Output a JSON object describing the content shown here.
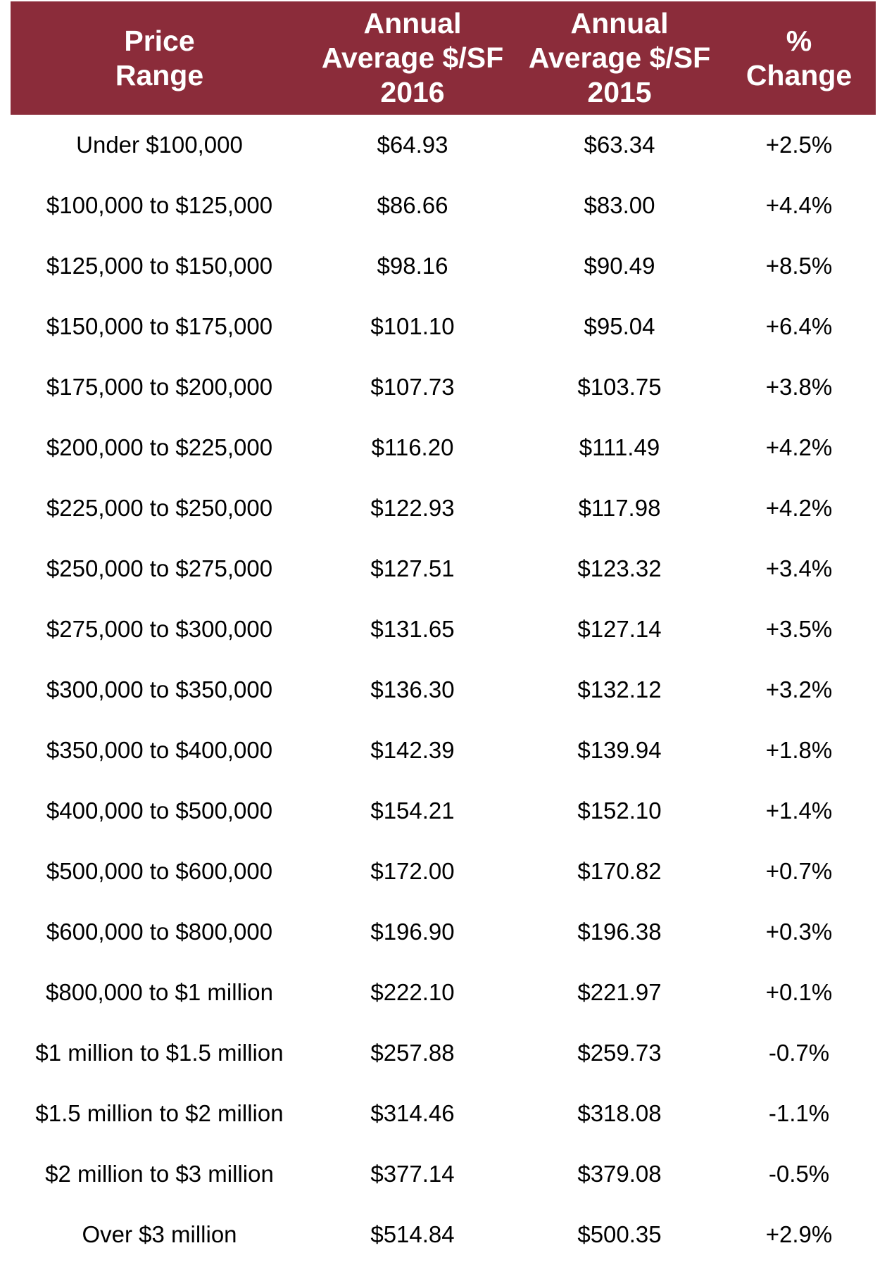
{
  "colors": {
    "header_background": "#8B2C3A",
    "header_text": "#ffffff",
    "body_text": "#000000"
  },
  "table": {
    "headers": [
      {
        "lines": [
          "Price",
          "Range"
        ]
      },
      {
        "lines": [
          "Annual",
          "Average $/SF",
          "2016"
        ]
      },
      {
        "lines": [
          "Annual",
          "Average $/SF",
          "2015"
        ]
      },
      {
        "lines": [
          "%",
          "Change"
        ]
      }
    ],
    "rows": [
      [
        "Under $100,000",
        "$64.93",
        "$63.34",
        "+2.5%"
      ],
      [
        "$100,000 to $125,000",
        "$86.66",
        "$83.00",
        "+4.4%"
      ],
      [
        "$125,000 to $150,000",
        "$98.16",
        "$90.49",
        "+8.5%"
      ],
      [
        "$150,000 to $175,000",
        "$101.10",
        "$95.04",
        "+6.4%"
      ],
      [
        "$175,000 to $200,000",
        "$107.73",
        "$103.75",
        "+3.8%"
      ],
      [
        "$200,000 to $225,000",
        "$116.20",
        "$111.49",
        "+4.2%"
      ],
      [
        "$225,000 to $250,000",
        "$122.93",
        "$117.98",
        "+4.2%"
      ],
      [
        "$250,000 to $275,000",
        "$127.51",
        "$123.32",
        "+3.4%"
      ],
      [
        "$275,000 to $300,000",
        "$131.65",
        "$127.14",
        "+3.5%"
      ],
      [
        "$300,000 to $350,000",
        "$136.30",
        "$132.12",
        "+3.2%"
      ],
      [
        "$350,000 to $400,000",
        "$142.39",
        "$139.94",
        "+1.8%"
      ],
      [
        "$400,000 to $500,000",
        "$154.21",
        "$152.10",
        "+1.4%"
      ],
      [
        "$500,000 to $600,000",
        "$172.00",
        "$170.82",
        "+0.7%"
      ],
      [
        "$600,000 to $800,000",
        "$196.90",
        "$196.38",
        "+0.3%"
      ],
      [
        "$800,000 to $1 million",
        "$222.10",
        "$221.97",
        "+0.1%"
      ],
      [
        "$1 million to $1.5 million",
        "$257.88",
        "$259.73",
        "-0.7%"
      ],
      [
        "$1.5 million to $2 million",
        "$314.46",
        "$318.08",
        "-1.1%"
      ],
      [
        "$2 million to $3 million",
        "$377.14",
        "$379.08",
        "-0.5%"
      ],
      [
        "Over $3 million",
        "$514.84",
        "$500.35",
        "+2.9%"
      ]
    ]
  }
}
